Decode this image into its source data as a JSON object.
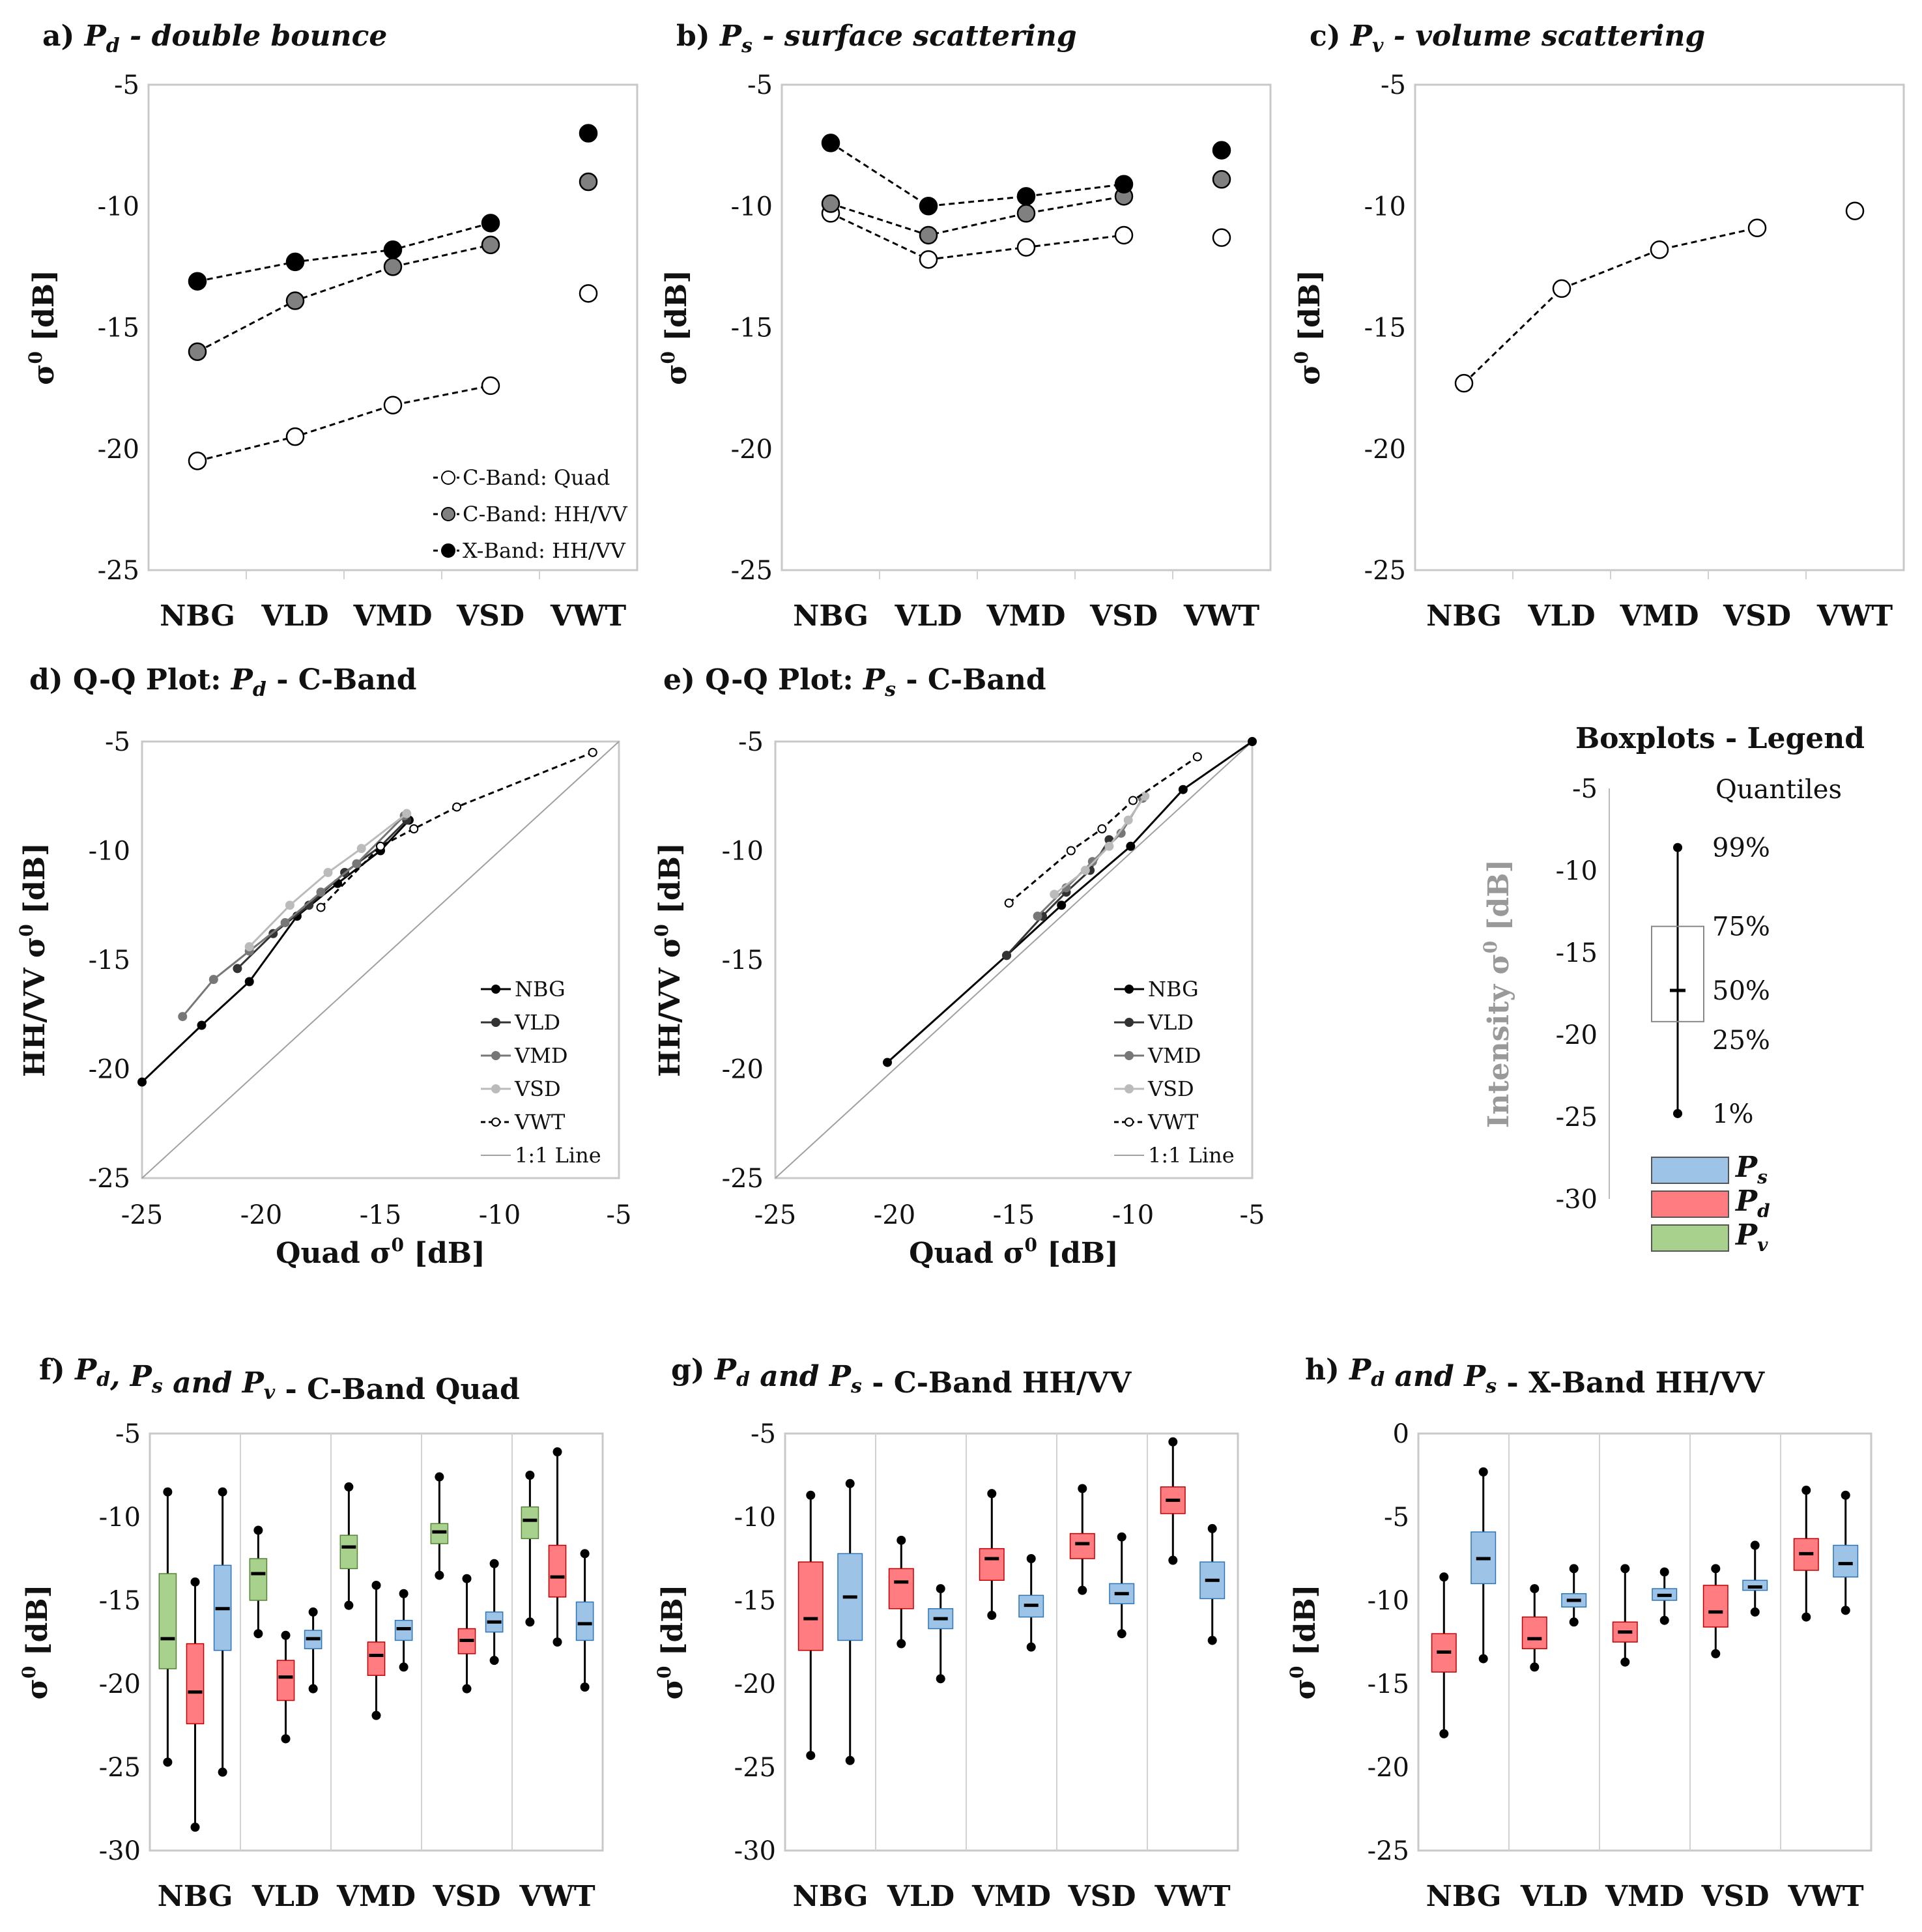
{
  "colors": {
    "ps": "#9dc3e6",
    "ps_stroke": "#2e75b6",
    "pd": "#ff7c80",
    "pd_stroke": "#c00000",
    "pv": "#a9d18e",
    "pv_stroke": "#548235",
    "quad": "#ffffff",
    "chh": "#808080",
    "xhh": "#000000"
  },
  "categories": [
    "NBG",
    "VLD",
    "VMD",
    "VSD",
    "VWT"
  ],
  "chart_data": [
    {
      "id": "a",
      "type": "line",
      "title": {
        "prefix": "a) ",
        "sym": "P",
        "sub": "d",
        "rest": " - double bounce"
      },
      "ylabel": "σ0 [dB]",
      "ylim": [
        -25,
        -5
      ],
      "yticks": [
        -5,
        -10,
        -15,
        -20,
        -25
      ],
      "legend": [
        "-C-Band: Quad",
        "-C-Band: HH/VV",
        "-X-Band: HH/VV"
      ],
      "series": [
        {
          "name": "C-Band: Quad",
          "style": "quad",
          "values": [
            -20.5,
            -19.5,
            -18.2,
            -17.4,
            -13.6
          ]
        },
        {
          "name": "C-Band: HH/VV",
          "style": "chh",
          "values": [
            -16.0,
            -13.9,
            -12.5,
            -11.6,
            -9.0
          ]
        },
        {
          "name": "X-Band: HH/VV",
          "style": "xhh",
          "values": [
            -13.1,
            -12.3,
            -11.8,
            -10.7,
            -7.0
          ]
        }
      ]
    },
    {
      "id": "b",
      "type": "line",
      "title": {
        "prefix": "b) ",
        "sym": "P",
        "sub": "s",
        "rest": " - surface scattering"
      },
      "ylabel": "σ0 [dB]",
      "ylim": [
        -25,
        -5
      ],
      "yticks": [
        -5,
        -10,
        -15,
        -20,
        -25
      ],
      "series": [
        {
          "name": "C-Band: Quad",
          "style": "quad",
          "values": [
            -10.3,
            -12.2,
            -11.7,
            -11.2,
            -11.3
          ]
        },
        {
          "name": "C-Band: HH/VV",
          "style": "chh",
          "values": [
            -9.9,
            -11.2,
            -10.3,
            -9.6,
            -8.9
          ]
        },
        {
          "name": "X-Band: HH/VV",
          "style": "xhh",
          "values": [
            -7.4,
            -10.0,
            -9.6,
            -9.1,
            -7.7
          ]
        }
      ]
    },
    {
      "id": "c",
      "type": "line",
      "title": {
        "prefix": "c) ",
        "sym": "P",
        "sub": "v",
        "rest": " - volume scattering"
      },
      "ylabel": "σ0 [dB]",
      "ylim": [
        -25,
        -5
      ],
      "yticks": [
        -5,
        -10,
        -15,
        -20,
        -25
      ],
      "series": [
        {
          "name": "C-Band: Quad",
          "style": "quad",
          "values": [
            -17.3,
            -13.4,
            -11.8,
            -10.9,
            -10.2
          ]
        }
      ]
    },
    {
      "id": "d",
      "type": "scatter",
      "title": {
        "prefix": "d) Q-Q Plot: ",
        "sym": "P",
        "sub": "d",
        "rest": " - C-Band"
      },
      "xlabel": "Quad σ0 [dB]",
      "ylabel": "HH/VV σ0 [dB]",
      "xlim": [
        -25,
        -5
      ],
      "ylim": [
        -25,
        -5
      ],
      "xticks": [
        -25,
        -20,
        -15,
        -10,
        -5
      ],
      "yticks": [
        -5,
        -10,
        -15,
        -20,
        -25
      ],
      "legend": [
        "NBG",
        "VLD",
        "VMD",
        "VSD",
        "VWT",
        "1:1 Line"
      ],
      "series": [
        {
          "name": "NBG",
          "x": [
            -25.0,
            -22.5,
            -20.5,
            -18.5,
            -16.8,
            -15.0,
            -13.8
          ],
          "y": [
            -20.6,
            -18.0,
            -16.0,
            -13.0,
            -11.5,
            -10.0,
            -8.6
          ]
        },
        {
          "name": "VLD",
          "x": [
            -21.0,
            -19.5,
            -18.0,
            -16.5,
            -15.0,
            -13.9
          ],
          "y": [
            -15.4,
            -13.8,
            -12.5,
            -11.0,
            -9.8,
            -8.6
          ]
        },
        {
          "name": "VMD",
          "x": [
            -23.3,
            -22.0,
            -20.5,
            -19.0,
            -17.5,
            -16.0,
            -14.0
          ],
          "y": [
            -17.6,
            -15.9,
            -14.6,
            -13.3,
            -11.9,
            -10.6,
            -8.4
          ]
        },
        {
          "name": "VSD",
          "x": [
            -20.5,
            -18.8,
            -17.2,
            -15.8,
            -13.9
          ],
          "y": [
            -14.4,
            -12.5,
            -11.0,
            -9.9,
            -8.3
          ]
        },
        {
          "name": "VWT",
          "x": [
            -17.5,
            -15.0,
            -13.6,
            -11.8,
            -6.1
          ],
          "y": [
            -12.6,
            -9.8,
            -9.0,
            -8.0,
            -5.5
          ]
        }
      ]
    },
    {
      "id": "e",
      "type": "scatter",
      "title": {
        "prefix": "e) Q-Q Plot: ",
        "sym": "P",
        "sub": "s",
        "rest": " - C-Band"
      },
      "xlabel": "Quad σ0 [dB]",
      "ylabel": "HH/VV σ0 [dB]",
      "xlim": [
        -25,
        -5
      ],
      "ylim": [
        -25,
        -5
      ],
      "xticks": [
        -25,
        -20,
        -15,
        -10,
        -5
      ],
      "yticks": [
        -5,
        -10,
        -15,
        -20,
        -25
      ],
      "legend": [
        "NBG",
        "VLD",
        "VMD",
        "VSD",
        "VWT",
        "1:1 Line"
      ],
      "series": [
        {
          "name": "NBG",
          "x": [
            -20.3,
            -15.3,
            -13.0,
            -10.1,
            -7.9,
            -5.0
          ],
          "y": [
            -19.7,
            -14.8,
            -12.5,
            -9.8,
            -7.2,
            -5.0
          ]
        },
        {
          "name": "VLD",
          "x": [
            -15.3,
            -13.8,
            -12.8,
            -11.8,
            -11.0
          ],
          "y": [
            -14.8,
            -13.0,
            -11.9,
            -10.9,
            -9.5
          ]
        },
        {
          "name": "VMD",
          "x": [
            -14.0,
            -12.8,
            -11.7,
            -10.5,
            -9.6
          ],
          "y": [
            -13.0,
            -11.7,
            -10.5,
            -9.2,
            -7.6
          ]
        },
        {
          "name": "VSD",
          "x": [
            -13.3,
            -12.0,
            -11.0,
            -10.2,
            -9.5
          ],
          "y": [
            -12.0,
            -10.9,
            -9.8,
            -8.6,
            -7.5
          ]
        },
        {
          "name": "VWT",
          "x": [
            -15.2,
            -12.6,
            -11.3,
            -10.0,
            -7.3
          ],
          "y": [
            -12.4,
            -10.0,
            -9.0,
            -7.7,
            -5.7
          ]
        }
      ]
    },
    {
      "id": "f",
      "type": "boxplot",
      "title": {
        "prefix": "f) ",
        "html": "Pd, Ps and Pv - C-Band Quad"
      },
      "ylabel": "σ0 [dB]",
      "ylim": [
        -30,
        -5
      ],
      "yticks": [
        -5,
        -10,
        -15,
        -20,
        -25,
        -30
      ],
      "groups": [
        {
          "category": "NBG",
          "boxes": [
            {
              "type": "pv",
              "q01": -24.7,
              "q25": -19.1,
              "q50": -17.3,
              "q75": -13.4,
              "q99": -8.5
            },
            {
              "type": "pd",
              "q01": -28.6,
              "q25": -22.4,
              "q50": -20.5,
              "q75": -17.6,
              "q99": -13.9
            },
            {
              "type": "ps",
              "q01": -25.3,
              "q25": -18.0,
              "q50": -15.5,
              "q75": -12.9,
              "q99": -8.5
            }
          ]
        },
        {
          "category": "VLD",
          "boxes": [
            {
              "type": "pv",
              "q01": -17.0,
              "q25": -15.0,
              "q50": -13.4,
              "q75": -12.5,
              "q99": -10.8
            },
            {
              "type": "pd",
              "q01": -23.3,
              "q25": -21.0,
              "q50": -19.6,
              "q75": -18.6,
              "q99": -17.1
            },
            {
              "type": "ps",
              "q01": -20.3,
              "q25": -17.9,
              "q50": -17.3,
              "q75": -16.8,
              "q99": -15.7
            }
          ]
        },
        {
          "category": "VMD",
          "boxes": [
            {
              "type": "pv",
              "q01": -15.3,
              "q25": -13.1,
              "q50": -11.8,
              "q75": -11.1,
              "q99": -8.2
            },
            {
              "type": "pd",
              "q01": -21.9,
              "q25": -19.5,
              "q50": -18.3,
              "q75": -17.5,
              "q99": -14.1
            },
            {
              "type": "ps",
              "q01": -19.0,
              "q25": -17.4,
              "q50": -16.7,
              "q75": -16.2,
              "q99": -14.6
            }
          ]
        },
        {
          "category": "VSD",
          "boxes": [
            {
              "type": "pv",
              "q01": -13.5,
              "q25": -11.6,
              "q50": -10.9,
              "q75": -10.4,
              "q99": -7.6
            },
            {
              "type": "pd",
              "q01": -20.3,
              "q25": -18.2,
              "q50": -17.4,
              "q75": -16.7,
              "q99": -13.7
            },
            {
              "type": "ps",
              "q01": -18.6,
              "q25": -16.9,
              "q50": -16.3,
              "q75": -15.7,
              "q99": -12.8
            }
          ]
        },
        {
          "category": "VWT",
          "boxes": [
            {
              "type": "pv",
              "q01": -16.3,
              "q25": -11.3,
              "q50": -10.2,
              "q75": -9.4,
              "q99": -7.5
            },
            {
              "type": "pd",
              "q01": -17.5,
              "q25": -14.8,
              "q50": -13.6,
              "q75": -11.7,
              "q99": -6.1
            },
            {
              "type": "ps",
              "q01": -20.2,
              "q25": -17.4,
              "q50": -16.4,
              "q75": -15.1,
              "q99": -12.2
            }
          ]
        }
      ]
    },
    {
      "id": "g",
      "type": "boxplot",
      "title": {
        "prefix": "g) ",
        "html": "Pd and Ps - C-Band HH/VV"
      },
      "ylabel": "σ0 [dB]",
      "ylim": [
        -30,
        -5
      ],
      "yticks": [
        -5,
        -10,
        -15,
        -20,
        -25,
        -30
      ],
      "groups": [
        {
          "category": "NBG",
          "boxes": [
            {
              "type": "pd",
              "q01": -24.3,
              "q25": -18.0,
              "q50": -16.1,
              "q75": -12.7,
              "q99": -8.7
            },
            {
              "type": "ps",
              "q01": -24.6,
              "q25": -17.4,
              "q50": -14.8,
              "q75": -12.2,
              "q99": -8.0
            }
          ]
        },
        {
          "category": "VLD",
          "boxes": [
            {
              "type": "pd",
              "q01": -17.6,
              "q25": -15.5,
              "q50": -13.9,
              "q75": -13.1,
              "q99": -11.4
            },
            {
              "type": "ps",
              "q01": -19.7,
              "q25": -16.7,
              "q50": -16.1,
              "q75": -15.5,
              "q99": -14.3
            }
          ]
        },
        {
          "category": "VMD",
          "boxes": [
            {
              "type": "pd",
              "q01": -15.9,
              "q25": -13.8,
              "q50": -12.5,
              "q75": -11.9,
              "q99": -8.6
            },
            {
              "type": "ps",
              "q01": -17.8,
              "q25": -16.0,
              "q50": -15.3,
              "q75": -14.7,
              "q99": -12.5
            }
          ]
        },
        {
          "category": "VSD",
          "boxes": [
            {
              "type": "pd",
              "q01": -14.4,
              "q25": -12.5,
              "q50": -11.6,
              "q75": -11.0,
              "q99": -8.3
            },
            {
              "type": "ps",
              "q01": -17.0,
              "q25": -15.2,
              "q50": -14.6,
              "q75": -14.0,
              "q99": -11.2
            }
          ]
        },
        {
          "category": "VWT",
          "boxes": [
            {
              "type": "pd",
              "q01": -12.6,
              "q25": -9.8,
              "q50": -9.0,
              "q75": -8.2,
              "q99": -5.5
            },
            {
              "type": "ps",
              "q01": -17.4,
              "q25": -14.9,
              "q50": -13.8,
              "q75": -12.7,
              "q99": -10.7
            }
          ]
        }
      ]
    },
    {
      "id": "h",
      "type": "boxplot",
      "title": {
        "prefix": "h) ",
        "html": "Pd and Ps - X-Band HH/VV"
      },
      "ylabel": "σ0 [dB]",
      "ylim": [
        -25,
        0
      ],
      "yticks": [
        0,
        -5,
        -10,
        -15,
        -20,
        -25
      ],
      "groups": [
        {
          "category": "NBG",
          "boxes": [
            {
              "type": "pd",
              "q01": -18.0,
              "q25": -14.3,
              "q50": -13.1,
              "q75": -12.0,
              "q99": -8.6
            },
            {
              "type": "ps",
              "q01": -13.5,
              "q25": -9.0,
              "q50": -7.5,
              "q75": -5.9,
              "q99": -2.3
            }
          ]
        },
        {
          "category": "VLD",
          "boxes": [
            {
              "type": "pd",
              "q01": -14.0,
              "q25": -12.9,
              "q50": -12.3,
              "q75": -11.0,
              "q99": -9.3
            },
            {
              "type": "ps",
              "q01": -11.3,
              "q25": -10.4,
              "q50": -10.0,
              "q75": -9.6,
              "q99": -8.1
            }
          ]
        },
        {
          "category": "VMD",
          "boxes": [
            {
              "type": "pd",
              "q01": -13.7,
              "q25": -12.5,
              "q50": -11.9,
              "q75": -11.3,
              "q99": -8.1
            },
            {
              "type": "ps",
              "q01": -11.2,
              "q25": -10.0,
              "q50": -9.7,
              "q75": -9.3,
              "q99": -8.3
            }
          ]
        },
        {
          "category": "VSD",
          "boxes": [
            {
              "type": "pd",
              "q01": -13.2,
              "q25": -11.6,
              "q50": -10.7,
              "q75": -9.1,
              "q99": -8.1
            },
            {
              "type": "ps",
              "q01": -10.7,
              "q25": -9.4,
              "q50": -9.2,
              "q75": -8.8,
              "q99": -6.7
            }
          ]
        },
        {
          "category": "VWT",
          "boxes": [
            {
              "type": "pd",
              "q01": -11.0,
              "q25": -8.2,
              "q50": -7.2,
              "q75": -6.3,
              "q99": -3.4
            },
            {
              "type": "ps",
              "q01": -10.6,
              "q25": -8.6,
              "q50": -7.8,
              "q75": -6.7,
              "q99": -3.7
            }
          ]
        }
      ]
    }
  ],
  "boxplot_legend": {
    "title": "Boxplots - Legend",
    "quantiles_label": "Quantiles",
    "ylabel": "Intensity σ0 [dB]",
    "yticks": [
      -5,
      -10,
      -15,
      -20,
      -25,
      -30
    ],
    "example": {
      "q01": -24.8,
      "q25": -19.2,
      "q50": -17.3,
      "q75": -13.4,
      "q99": -8.6
    },
    "labels": [
      "99%",
      "75%",
      "50%",
      "25%",
      "1%"
    ],
    "entries": [
      "Ps",
      "Pd",
      "Pv"
    ]
  }
}
